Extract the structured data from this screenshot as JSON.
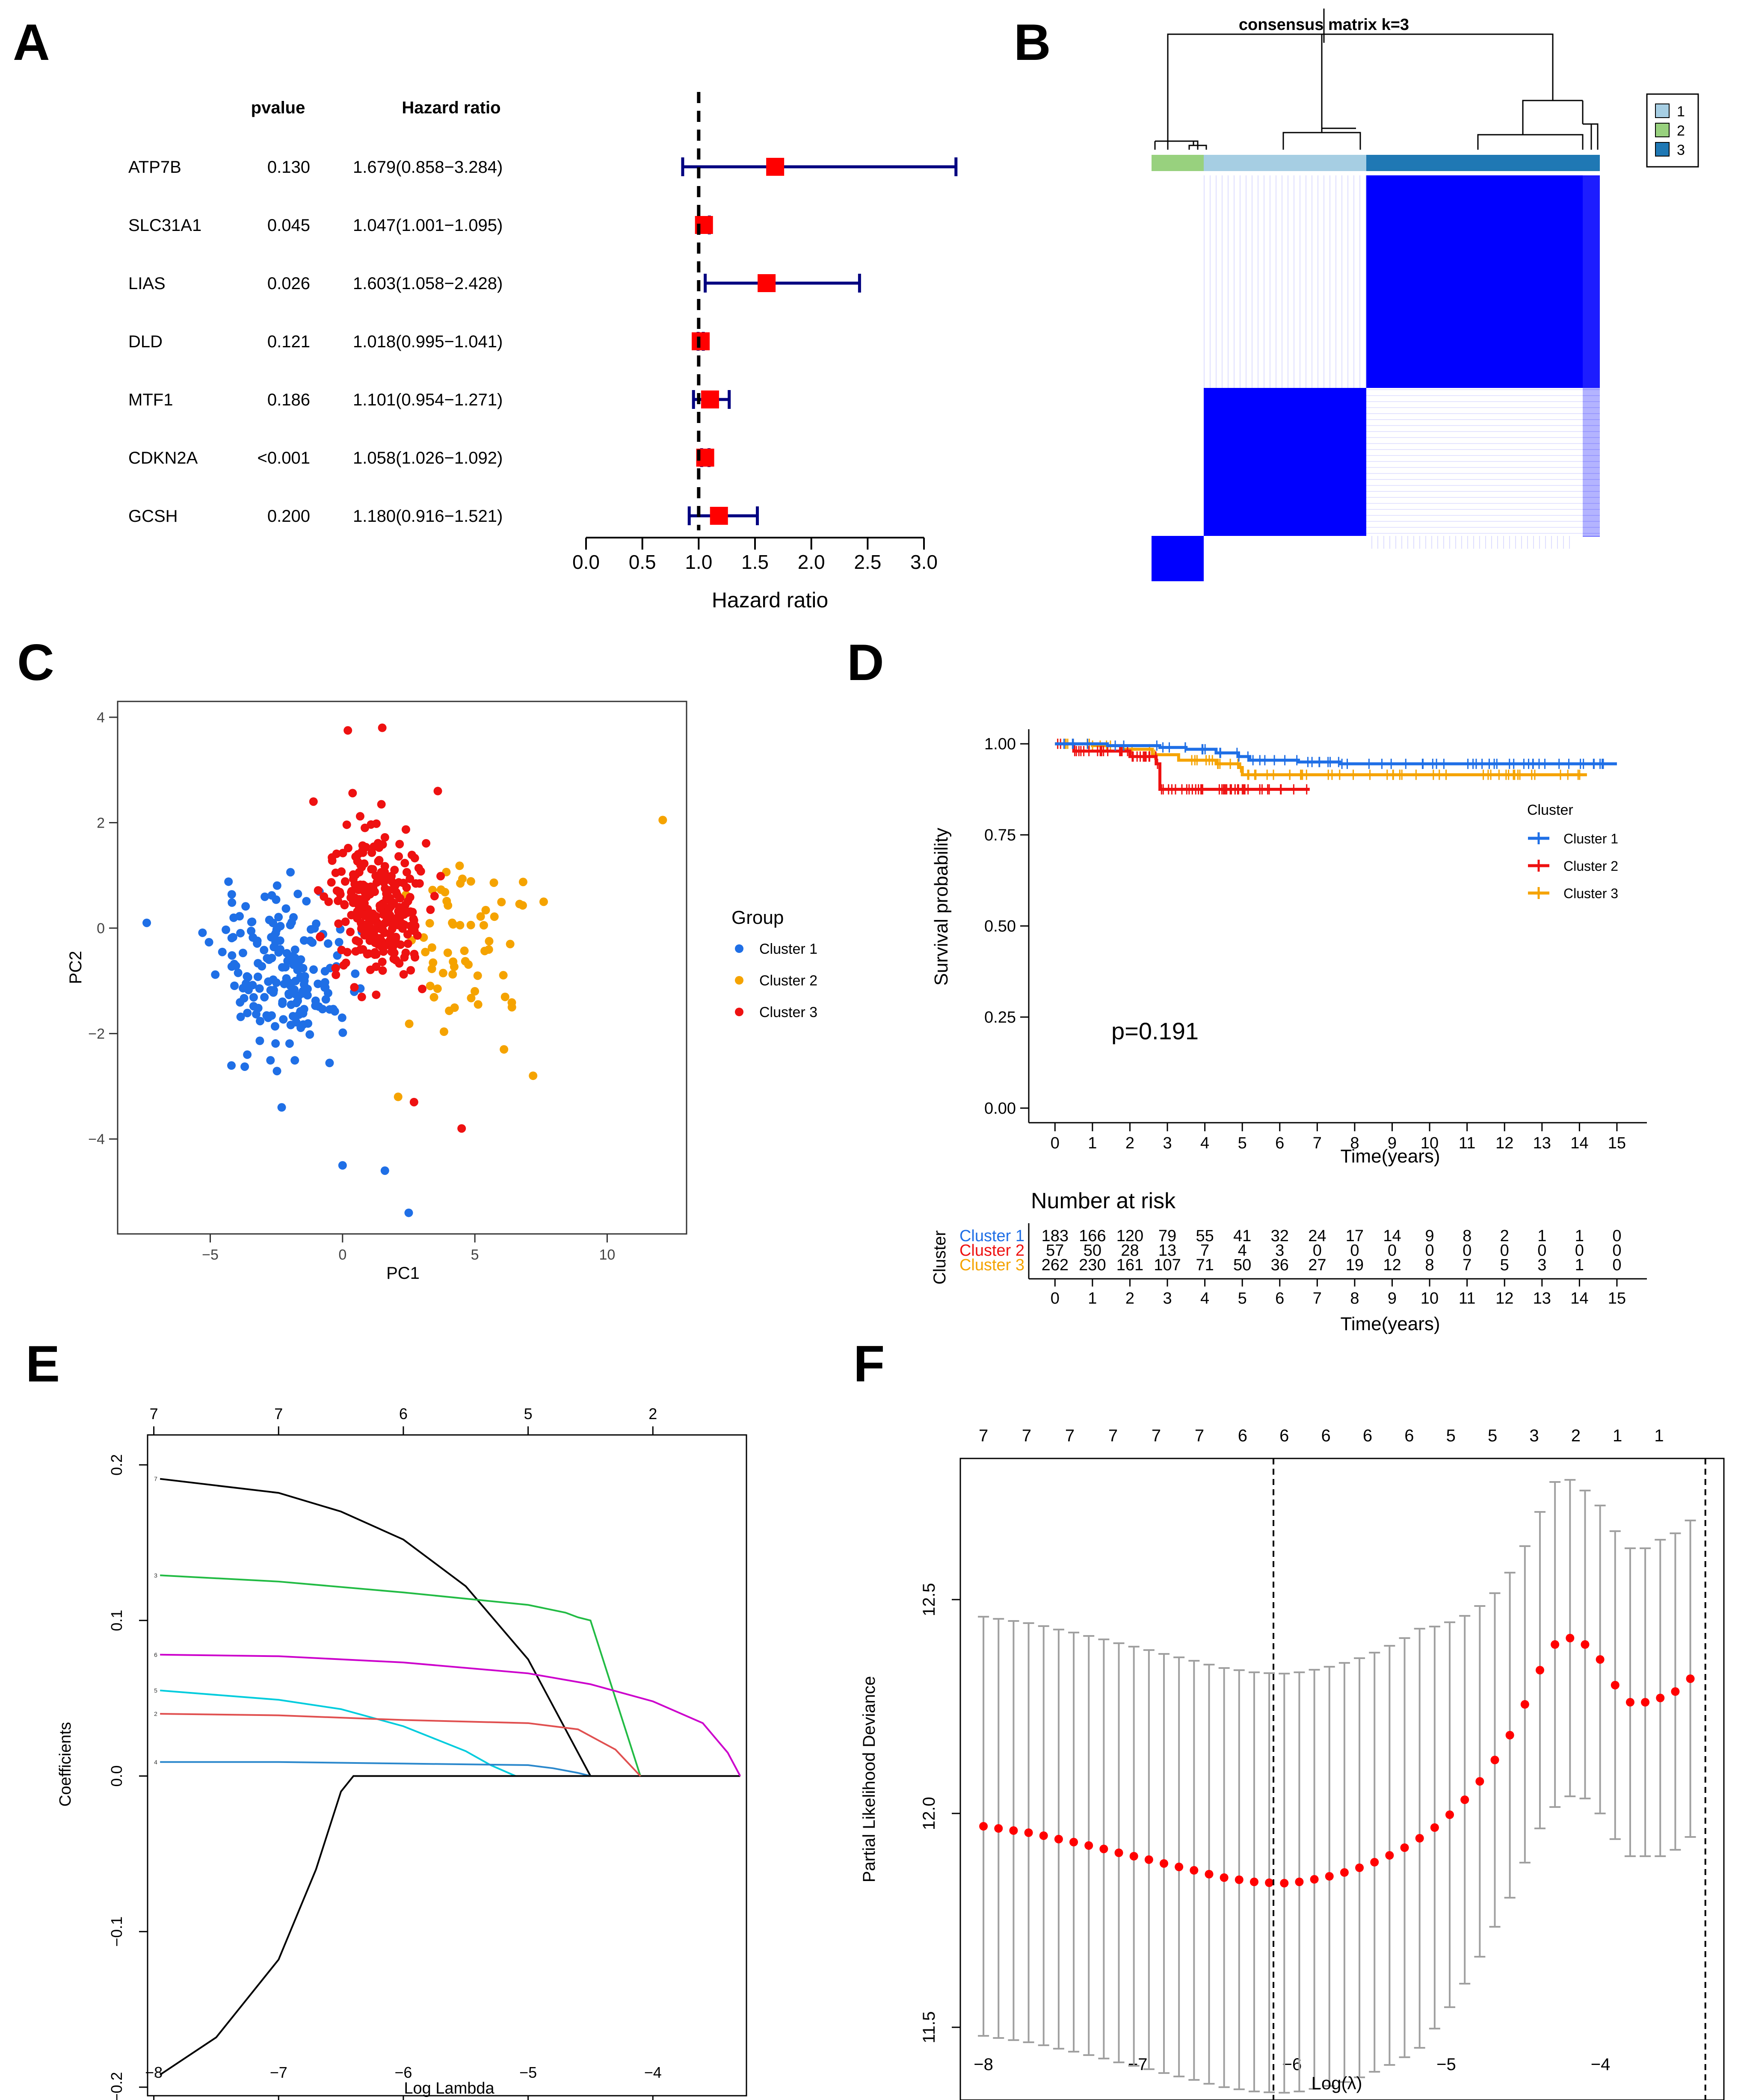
{
  "panels": {
    "A": {
      "letter": "A",
      "chart_data": {
        "type": "forest",
        "column_headers": {
          "pvalue": "pvalue",
          "hr": "Hazard ratio"
        },
        "rows": [
          {
            "gene": "ATP7B",
            "pvalue": "0.130",
            "hr_text": "1.679(0.858−3.284)",
            "hr": 1.679,
            "lo": 0.858,
            "hi": 3.284
          },
          {
            "gene": "SLC31A1",
            "pvalue": "0.045",
            "hr_text": "1.047(1.001−1.095)",
            "hr": 1.047,
            "lo": 1.001,
            "hi": 1.095
          },
          {
            "gene": "LIAS",
            "pvalue": "0.026",
            "hr_text": "1.603(1.058−2.428)",
            "hr": 1.603,
            "lo": 1.058,
            "hi": 2.428
          },
          {
            "gene": "DLD",
            "pvalue": "0.121",
            "hr_text": "1.018(0.995−1.041)",
            "hr": 1.018,
            "lo": 0.995,
            "hi": 1.041
          },
          {
            "gene": "MTF1",
            "pvalue": "0.186",
            "hr_text": "1.101(0.954−1.271)",
            "hr": 1.101,
            "lo": 0.954,
            "hi": 1.271
          },
          {
            "gene": "CDKN2A",
            "pvalue": "<0.001",
            "hr_text": "1.058(1.026−1.092)",
            "hr": 1.058,
            "lo": 1.026,
            "hi": 1.092
          },
          {
            "gene": "GCSH",
            "pvalue": "0.200",
            "hr_text": "1.180(0.916−1.521)",
            "hr": 1.18,
            "lo": 0.916,
            "hi": 1.521
          }
        ],
        "xlabel": "Hazard ratio",
        "xticks": [
          "0.0",
          "0.5",
          "1.0",
          "1.5",
          "2.0",
          "2.5",
          "3.0"
        ],
        "xlim": [
          0,
          3.0
        ],
        "reference_line": 1.0,
        "colors": {
          "ci": "#000080",
          "point": "#ff0000"
        }
      }
    },
    "B": {
      "letter": "B",
      "chart_data": {
        "type": "heatmap",
        "title": "consensus matrix k=3",
        "legend": [
          "1",
          "2",
          "3"
        ],
        "colors": {
          "1": "#a6cee3",
          "2": "#98d17e",
          "3": "#1f78b4",
          "cell": "#0000ff"
        },
        "cluster_order": [
          "2",
          "1",
          "3"
        ],
        "cluster_sizes": [
          57,
          183,
          262
        ],
        "grid": false
      }
    },
    "C": {
      "letter": "C",
      "chart_data": {
        "type": "scatter",
        "xlabel": "PC1",
        "ylabel": "PC2",
        "xticks": [
          "−5",
          "0",
          "5",
          "10"
        ],
        "yticks": [
          "−4",
          "−2",
          "0",
          "2",
          "4"
        ],
        "xlim": [
          -8.5,
          13
        ],
        "ylim": [
          -5.8,
          4.3
        ],
        "legend_title": "Group",
        "legend_position": "right",
        "series": [
          {
            "name": "Cluster 1",
            "color": "#1f6fe6",
            "n": 183,
            "center": [
              -2.3,
              -0.9
            ],
            "spread": [
              2.2,
              1.4
            ],
            "fixed_points": [
              [
                0,
                -4.5
              ],
              [
                1.6,
                -4.6
              ],
              [
                2.5,
                -5.4
              ],
              [
                -2.3,
                -3.4
              ],
              [
                -7.4,
                0.1
              ],
              [
                -3.6,
                -2.4
              ]
            ]
          },
          {
            "name": "Cluster 2",
            "color": "#f5a300",
            "n": 57,
            "center": [
              4.6,
              -0.3
            ],
            "spread": [
              1.9,
              1.5
            ],
            "fixed_points": [
              [
                12.1,
                2.05
              ],
              [
                7.2,
                -2.8
              ],
              [
                6.1,
                -2.3
              ],
              [
                7.6,
                0.5
              ],
              [
                2.1,
                -3.2
              ],
              [
                6.4,
                -1.5
              ]
            ]
          },
          {
            "name": "Cluster 3",
            "color": "#ee1111",
            "n": 262,
            "center": [
              1.4,
              0.45
            ],
            "spread": [
              1.7,
              1.35
            ],
            "fixed_points": [
              [
                1.5,
                3.8
              ],
              [
                0.2,
                3.75
              ],
              [
                4.5,
                -3.8
              ],
              [
                2.7,
                -3.3
              ],
              [
                3.6,
                2.6
              ],
              [
                -1.1,
                2.4
              ]
            ]
          }
        ]
      }
    },
    "D": {
      "letter": "D",
      "chart_data": {
        "type": "line",
        "ylabel": "Survival probability",
        "xlabel": "Time(years)",
        "xticks": [
          "0",
          "1",
          "2",
          "3",
          "4",
          "5",
          "6",
          "7",
          "8",
          "9",
          "10",
          "11",
          "12",
          "13",
          "14",
          "15"
        ],
        "yticks": [
          "0.00",
          "0.25",
          "0.50",
          "0.75",
          "1.00"
        ],
        "xlim": [
          -0.7,
          15.8
        ],
        "ylim": [
          -0.04,
          1.04
        ],
        "pvalue_text": "p=0.191",
        "legend_title": "Cluster",
        "legend_position": "right",
        "series": [
          {
            "name": "Cluster 1",
            "color": "#1f6fe6",
            "x": [
              0,
              1.4,
              2.8,
              3.5,
              4.3,
              4.9,
              5.2,
              6.5,
              7.6,
              15
            ],
            "y": [
              1.0,
              0.995,
              0.99,
              0.985,
              0.975,
              0.965,
              0.955,
              0.95,
              0.945,
              0.945
            ]
          },
          {
            "name": "Cluster 2",
            "color": "#ee1111",
            "x": [
              0,
              0.5,
              1.0,
              2.0,
              2.7,
              2.8,
              6.8
            ],
            "y": [
              1.0,
              0.98,
              0.98,
              0.965,
              0.945,
              0.875,
              0.875
            ]
          },
          {
            "name": "Cluster 3",
            "color": "#f5a300",
            "x": [
              0,
              1.0,
              1.8,
              2.6,
              3.3,
              4.3,
              4.9,
              5.0,
              9.0,
              14.2
            ],
            "y": [
              1.0,
              0.995,
              0.985,
              0.97,
              0.955,
              0.945,
              0.935,
              0.915,
              0.915,
              0.915
            ]
          }
        ],
        "risk_table": {
          "title": "Number at risk",
          "row_axis_label": "Cluster",
          "xlabel": "Time(years)",
          "rows": [
            {
              "label": "Cluster 1",
              "color": "#1f6fe6",
              "values": [
                "183",
                "166",
                "120",
                "79",
                "55",
                "41",
                "32",
                "24",
                "17",
                "14",
                "9",
                "8",
                "2",
                "1",
                "1",
                "0"
              ]
            },
            {
              "label": "Cluster 2",
              "color": "#ee1111",
              "values": [
                "57",
                "50",
                "28",
                "13",
                "7",
                "4",
                "3",
                "0",
                "0",
                "0",
                "0",
                "0",
                "0",
                "0",
                "0",
                "0"
              ]
            },
            {
              "label": "Cluster 3",
              "color": "#f5a300",
              "values": [
                "262",
                "230",
                "161",
                "107",
                "71",
                "50",
                "36",
                "27",
                "19",
                "12",
                "8",
                "7",
                "5",
                "3",
                "1",
                "0"
              ]
            }
          ]
        }
      }
    },
    "E": {
      "letter": "E",
      "chart_data": {
        "type": "line",
        "xlabel": "Log Lambda",
        "ylabel": "Coefficients",
        "xticks": [
          "−8",
          "−7",
          "−6",
          "−5",
          "−4"
        ],
        "yticks": [
          "−0.2",
          "−0.1",
          "0.0",
          "0.1",
          "0.2"
        ],
        "top_ticks": [
          "7",
          "7",
          "6",
          "5",
          "2"
        ],
        "top_tick_positions": [
          -8,
          -7,
          -6,
          -5,
          -4
        ],
        "xlim": [
          -8.05,
          -3.25
        ],
        "ylim": [
          -0.2,
          0.2
        ],
        "series": [
          {
            "name": "7",
            "color": "#000000",
            "x": [
              -7.95,
              -7.0,
              -6.5,
              -6.0,
              -5.5,
              -5.0,
              -4.7,
              -4.5
            ],
            "y": [
              0.191,
              0.182,
              0.17,
              0.152,
              0.122,
              0.075,
              0.03,
              0.0
            ]
          },
          {
            "name": "3",
            "color": "#22bb44",
            "x": [
              -7.95,
              -7.0,
              -6.0,
              -5.0,
              -4.7,
              -4.6,
              -4.5,
              -4.3,
              -4.1
            ],
            "y": [
              0.129,
              0.125,
              0.118,
              0.11,
              0.105,
              0.102,
              0.1,
              0.05,
              0.0
            ]
          },
          {
            "name": "6",
            "color": "#cc00cc",
            "x": [
              -7.95,
              -7.0,
              -6.0,
              -5.0,
              -4.5,
              -4.0,
              -3.6,
              -3.4,
              -3.3
            ],
            "y": [
              0.078,
              0.077,
              0.073,
              0.066,
              0.059,
              0.048,
              0.034,
              0.015,
              0.0
            ]
          },
          {
            "name": "5",
            "color": "#00ccdd",
            "x": [
              -7.95,
              -7.0,
              -6.5,
              -6.0,
              -5.5,
              -5.3,
              -5.1
            ],
            "y": [
              0.055,
              0.049,
              0.043,
              0.032,
              0.016,
              0.007,
              0.0
            ]
          },
          {
            "name": "2",
            "color": "#e05050",
            "x": [
              -7.95,
              -7.0,
              -6.0,
              -5.0,
              -4.6,
              -4.3,
              -4.1
            ],
            "y": [
              0.04,
              0.039,
              0.036,
              0.034,
              0.03,
              0.017,
              0.0
            ]
          },
          {
            "name": "4",
            "color": "#2b88cc",
            "x": [
              -7.95,
              -7.0,
              -6.0,
              -5.0,
              -4.8,
              -4.6,
              -4.5
            ],
            "y": [
              0.009,
              0.009,
              0.008,
              0.007,
              0.005,
              0.002,
              0.0
            ]
          },
          {
            "name": "1",
            "color": "#000000",
            "x": [
              -7.95,
              -7.5,
              -7.0,
              -6.7,
              -6.5,
              -6.4,
              -4.5
            ],
            "y": [
              -0.192,
              -0.168,
              -0.118,
              -0.06,
              -0.01,
              0.0,
              0.0
            ]
          }
        ],
        "zero_line_extent": [
          -6.4,
          -3.3
        ]
      }
    },
    "F": {
      "letter": "F",
      "chart_data": {
        "type": "line",
        "xlabel": "Log(λ)",
        "ylabel": "Partial Likelihood Deviance",
        "xticks": [
          "−8",
          "−7",
          "−6",
          "−5",
          "−4"
        ],
        "yticks": [
          "11.5",
          "12.0",
          "12.5"
        ],
        "top_ticks": [
          "7",
          "7",
          "7",
          "7",
          "7",
          "7",
          "6",
          "6",
          "6",
          "6",
          "6",
          "5",
          "5",
          "3",
          "2",
          "1",
          "1"
        ],
        "top_tick_positions": [
          -8.0,
          -7.72,
          -7.44,
          -7.16,
          -6.88,
          -6.6,
          -6.32,
          -6.05,
          -5.78,
          -5.51,
          -5.24,
          -4.97,
          -4.7,
          -4.43,
          -4.16,
          -3.89,
          -3.62
        ],
        "xlim": [
          -8.15,
          -3.2
        ],
        "ylim": [
          11.33,
          12.83
        ],
        "vlines": [
          -6.12,
          -3.32
        ],
        "points": {
          "color": "#ff0000",
          "errorbar_color": "#a0a0a0",
          "x_start": -8.0,
          "x_step": 0.0975,
          "count": 48,
          "mean": [
            11.97,
            11.965,
            11.96,
            11.955,
            11.948,
            11.94,
            11.933,
            11.925,
            11.917,
            11.908,
            11.9,
            11.892,
            11.883,
            11.875,
            11.867,
            11.858,
            11.85,
            11.845,
            11.84,
            11.838,
            11.837,
            11.84,
            11.846,
            11.853,
            11.862,
            11.873,
            11.886,
            11.902,
            11.92,
            11.942,
            11.967,
            11.997,
            12.032,
            12.075,
            12.125,
            12.183,
            12.255,
            12.335,
            12.395,
            12.41,
            12.395,
            12.36,
            12.3,
            12.26,
            12.26,
            12.27,
            12.285,
            12.315
          ],
          "se": [
            0.49,
            0.49,
            0.49,
            0.49,
            0.49,
            0.49,
            0.49,
            0.49,
            0.49,
            0.49,
            0.49,
            0.49,
            0.49,
            0.49,
            0.49,
            0.49,
            0.49,
            0.49,
            0.49,
            0.49,
            0.49,
            0.49,
            0.49,
            0.49,
            0.49,
            0.49,
            0.49,
            0.49,
            0.49,
            0.49,
            0.47,
            0.45,
            0.43,
            0.41,
            0.39,
            0.38,
            0.37,
            0.37,
            0.38,
            0.37,
            0.36,
            0.36,
            0.36,
            0.36,
            0.36,
            0.37,
            0.37,
            0.37
          ]
        }
      }
    }
  }
}
